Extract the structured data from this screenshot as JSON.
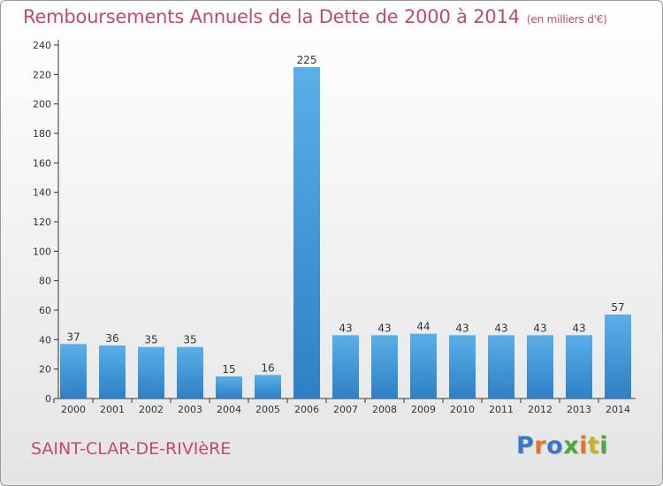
{
  "title": "Remboursements Annuels de la Dette de 2000 à 2014",
  "unit": "(en milliers d'€)",
  "commune": "SAINT-CLAR-DE-RIVIèRE",
  "logo": {
    "text": "Proxiti",
    "letter_colors": [
      "#3b78c4",
      "#e0762a",
      "#3b78c4",
      "#4aa83c",
      "#e0762a",
      "#c9b21f",
      "#4aa83c"
    ]
  },
  "colors": {
    "bar_top": "#5aafe8",
    "bar_bottom": "#2e80c4",
    "title": "#c24a6d"
  },
  "chart_data": {
    "type": "bar",
    "categories": [
      "2000",
      "2001",
      "2002",
      "2003",
      "2004",
      "2005",
      "2006",
      "2007",
      "2008",
      "2009",
      "2010",
      "2011",
      "2012",
      "2013",
      "2014"
    ],
    "values": [
      37,
      36,
      35,
      35,
      15,
      16,
      225,
      43,
      43,
      44,
      43,
      43,
      43,
      43,
      57
    ],
    "ylim": [
      0,
      240
    ],
    "yticks": [
      0,
      20,
      40,
      60,
      80,
      100,
      120,
      140,
      160,
      180,
      200,
      220,
      240
    ],
    "grid": false,
    "data_labels": true
  }
}
